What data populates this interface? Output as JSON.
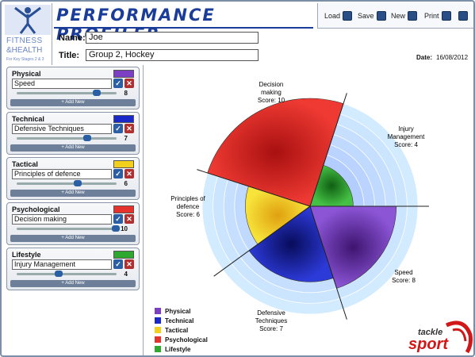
{
  "app": {
    "title": "PERFORMANCE PROFILER",
    "logo_line1": "FITNESS",
    "logo_line2": "&HEALTH",
    "logo_sub": "For Key Stages 2 & 3"
  },
  "toolbar": {
    "load_label": "Load",
    "save_label": "Save",
    "new_label": "New",
    "print_label": "Print"
  },
  "form": {
    "name_label": "Name:",
    "name_value": "Joe",
    "title_label": "Title:",
    "title_value": "Group 2, Hockey",
    "date_label": "Date:",
    "date_value": "16/08/2012"
  },
  "panels": [
    {
      "title": "Physical",
      "color": "#7b3fc4",
      "input": "Speed",
      "value": "8",
      "slider": 0.8,
      "add_new": "Add New"
    },
    {
      "title": "Technical",
      "color": "#1a28c8",
      "input": "Defensive Techniques",
      "value": "7",
      "slider": 0.7,
      "add_new": "Add New"
    },
    {
      "title": "Tactical",
      "color": "#f2d11e",
      "input": "Principles of defence",
      "value": "6",
      "slider": 0.6,
      "add_new": "Add New"
    },
    {
      "title": "Psychological",
      "color": "#e5322d",
      "input": "Decision making",
      "value": "10",
      "slider": 1.0,
      "add_new": "Add New"
    },
    {
      "title": "Lifestyle",
      "color": "#2fa82f",
      "input": "Injury Management",
      "value": "4",
      "slider": 0.4,
      "add_new": "Add New"
    }
  ],
  "chart_data": {
    "type": "polar-area",
    "max_score": 10,
    "segments": [
      {
        "name": "Decision making",
        "score_label": "Score: 10",
        "score": 10,
        "category": "Psychological",
        "color": "#e5322d"
      },
      {
        "name": "Injury Management",
        "score_label": "Score: 4",
        "score": 4,
        "category": "Lifestyle",
        "color": "#2fa82f"
      },
      {
        "name": "Speed",
        "score_label": "Score: 8",
        "score": 8,
        "category": "Physical",
        "color": "#7b3fc4"
      },
      {
        "name": "Defensive Techniques",
        "score_label": "Score: 7",
        "score": 7,
        "category": "Technical",
        "color": "#1a28c8"
      },
      {
        "name": "Principles of defence",
        "score_label": "Score: 6",
        "score": 6,
        "category": "Tactical",
        "color": "#f2d11e"
      }
    ],
    "labels": {
      "decision": [
        "Decision",
        "making",
        "Score: 10"
      ],
      "injury": [
        "Injury",
        "Management",
        "Score: 4"
      ],
      "speed": [
        "Speed",
        "Score: 8"
      ],
      "defensive": [
        "Defensive",
        "Techniques",
        "Score: 7"
      ],
      "principles": [
        "Principles of",
        "defence",
        "Score: 6"
      ]
    }
  },
  "legend": [
    {
      "label": "Physical",
      "color": "#7b3fc4"
    },
    {
      "label": "Technical",
      "color": "#1a28c8"
    },
    {
      "label": "Tactical",
      "color": "#f2d11e"
    },
    {
      "label": "Psychological",
      "color": "#e5322d"
    },
    {
      "label": "Lifestyle",
      "color": "#2fa82f"
    }
  ],
  "brand": {
    "line1": "tackle",
    "line2": "sport"
  }
}
